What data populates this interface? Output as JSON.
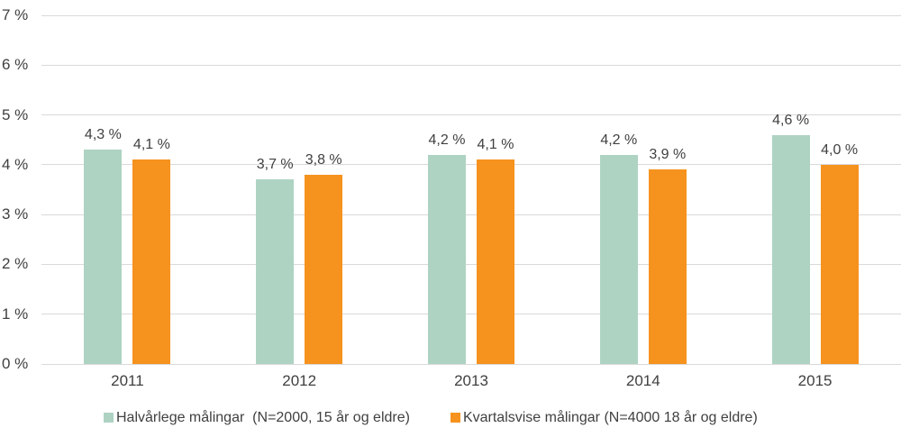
{
  "chart_data": {
    "type": "bar",
    "title": "",
    "categories": [
      "2011",
      "2012",
      "2013",
      "2014",
      "2015"
    ],
    "series": [
      {
        "name": "Halvårlege målingar  (N=2000, 15 år og eldre)",
        "color": "#aed3c2",
        "values": [
          4.3,
          3.7,
          4.2,
          4.2,
          4.6
        ],
        "value_labels": [
          "4,3 %",
          "3,7 %",
          "4,2 %",
          "4,2 %",
          "4,6 %"
        ]
      },
      {
        "name": "Kvartalsvise målingar (N=4000 18 år og eldre)",
        "color": "#f6921e",
        "values": [
          4.1,
          3.8,
          4.1,
          3.9,
          4.0
        ],
        "value_labels": [
          "4,1 %",
          "3,8 %",
          "4,1 %",
          "3,9 %",
          "4,0 %"
        ]
      }
    ],
    "xlabel": "",
    "ylabel": "",
    "ylim": [
      0,
      7
    ],
    "yticks": [
      0,
      1,
      2,
      3,
      4,
      5,
      6,
      7
    ],
    "ytick_labels": [
      "0 %",
      "1 %",
      "2 %",
      "3 %",
      "4 %",
      "5 %",
      "6 %",
      "7 %"
    ],
    "grid": true,
    "legend_position": "bottom"
  },
  "style": {
    "gridline_color": "#d9d9d9",
    "text_color": "#404040",
    "background": "#ffffff"
  }
}
